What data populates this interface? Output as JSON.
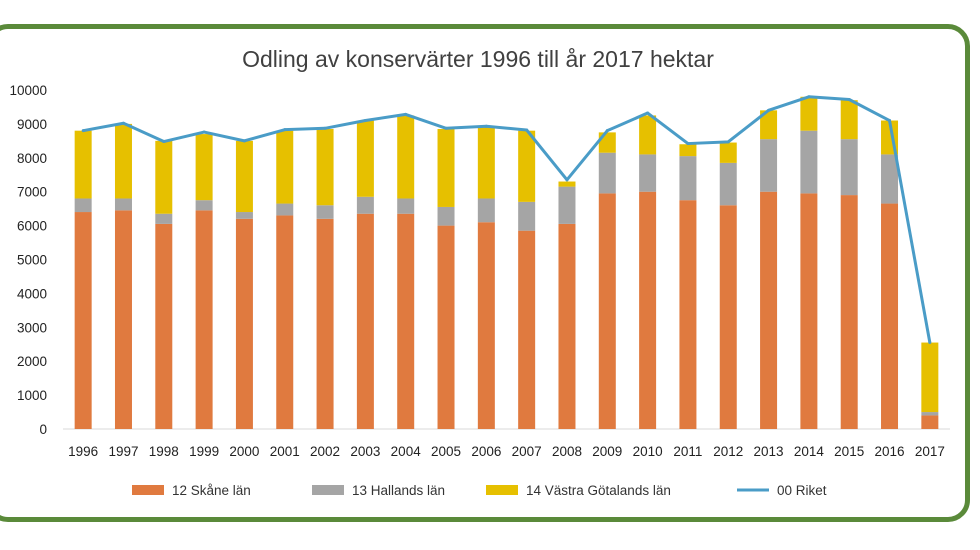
{
  "colors": {
    "skane": "#e07a3f",
    "halland": "#a5a5a5",
    "vastra": "#e6c000",
    "riket": "#4a9cc7",
    "frame": "#5a8a3a"
  },
  "chart_data": {
    "type": "bar",
    "stacked": true,
    "title": "Odling av konservärter 1996 till år 2017 hektar",
    "xlabel": "",
    "ylabel": "",
    "ylim": [
      0,
      10000
    ],
    "yticks": [
      0,
      1000,
      2000,
      3000,
      4000,
      5000,
      6000,
      7000,
      8000,
      9000,
      10000
    ],
    "grid": false,
    "legend_position": "bottom",
    "categories": [
      "1996",
      "1997",
      "1998",
      "1999",
      "2000",
      "2001",
      "2002",
      "2003",
      "2004",
      "2005",
      "2006",
      "2007",
      "2008",
      "2009",
      "2010",
      "2011",
      "2012",
      "2013",
      "2014",
      "2015",
      "2016",
      "2017"
    ],
    "series": [
      {
        "name": "12 Skåne län",
        "type": "bar",
        "values": [
          6400,
          6450,
          6050,
          6450,
          6200,
          6300,
          6200,
          6350,
          6350,
          6000,
          6100,
          5850,
          6050,
          6950,
          7000,
          6750,
          6600,
          7000,
          6950,
          6900,
          6650,
          400
        ]
      },
      {
        "name": "13 Hallands län",
        "type": "bar",
        "values": [
          400,
          350,
          300,
          300,
          200,
          350,
          400,
          500,
          450,
          550,
          700,
          850,
          1100,
          1200,
          1100,
          1300,
          1250,
          1550,
          1850,
          1650,
          1450,
          100
        ]
      },
      {
        "name": "14 Västra Götalands län",
        "type": "bar",
        "values": [
          2000,
          2200,
          2150,
          1950,
          2100,
          2150,
          2250,
          2250,
          2450,
          2300,
          2100,
          2100,
          150,
          600,
          1150,
          350,
          600,
          850,
          1000,
          1150,
          1000,
          2050
        ]
      },
      {
        "name": "00 Riket",
        "type": "line",
        "values": [
          8800,
          9020,
          8480,
          8760,
          8500,
          8830,
          8870,
          9100,
          9280,
          8870,
          8930,
          8820,
          7350,
          8800,
          9320,
          8420,
          8470,
          9400,
          9800,
          9720,
          9100,
          2550
        ]
      }
    ]
  }
}
